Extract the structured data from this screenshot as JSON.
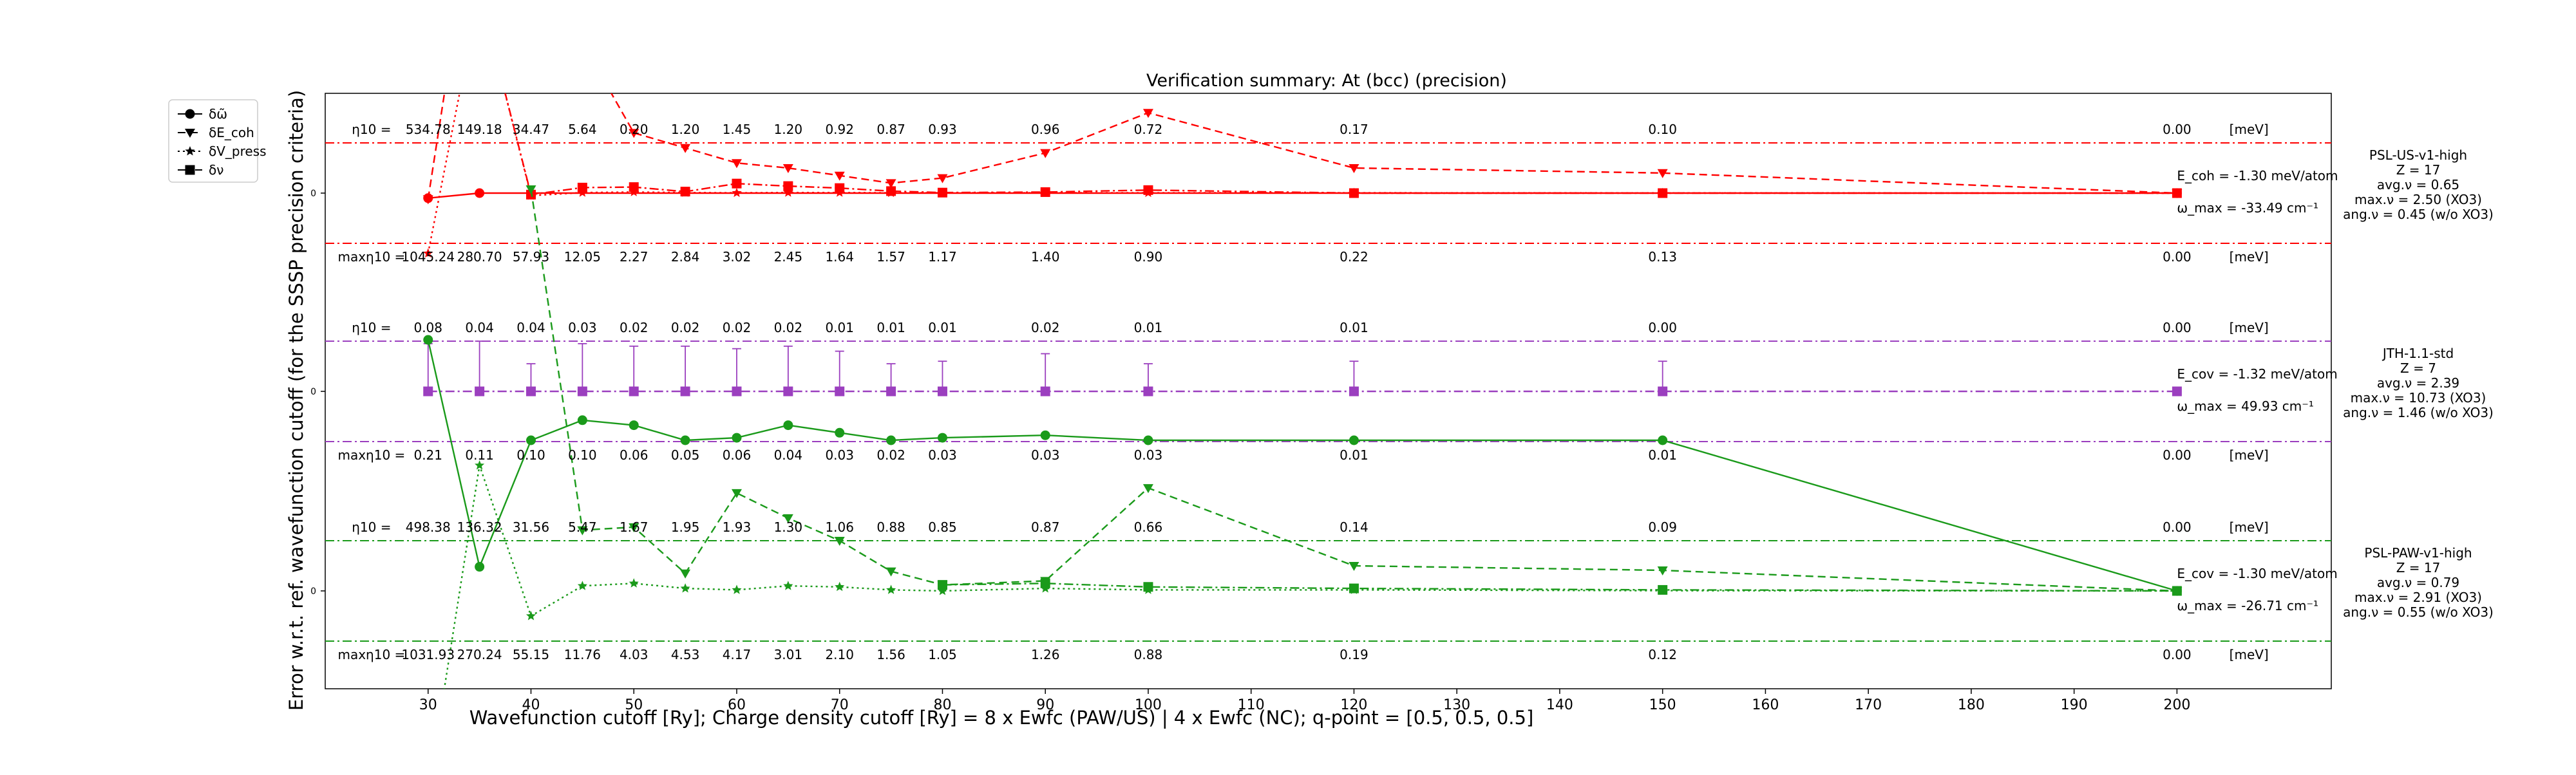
{
  "chart_data": {
    "type": "line",
    "title": "Verification summary: At (bcc) (precision)",
    "xlabel": "Wavefunction cutoff [Ry]; Charge density cutoff [Ry] = 8 x Ewfc (PAW/US) | 4 x Ewfc (NC); q-point = [0.5, 0.5, 0.5]",
    "ylabel": "Error w.r.t. ref. wavefunction cutoff (for the SSSP precision criteria)",
    "xlim": [
      20,
      215
    ],
    "x_ticks": [
      30,
      40,
      50,
      60,
      70,
      80,
      90,
      100,
      110,
      120,
      130,
      140,
      150,
      160,
      170,
      180,
      190,
      200
    ],
    "y_range_note": "three stacked panels, offsets 0, -1, -2 (each y tick labeled 0)",
    "y_tick_label": "0",
    "legend": {
      "position": "upper-left (outside axes)",
      "entries": [
        {
          "label": "δω̃",
          "marker": "circle",
          "linestyle": "solid"
        },
        {
          "label": "δE_coh",
          "marker": "triangle-down",
          "linestyle": "dashed"
        },
        {
          "label": "δV_press",
          "marker": "star",
          "linestyle": "dotted"
        },
        {
          "label": "δν",
          "marker": "square",
          "linestyle": "dash-dot"
        }
      ]
    },
    "x_cutoffs": [
      30,
      35,
      40,
      45,
      50,
      55,
      60,
      65,
      70,
      75,
      80,
      90,
      100,
      120,
      150,
      200
    ],
    "panels": [
      {
        "name": "PSL-US-v1-high",
        "color": "#ff0000",
        "offset": 0,
        "info": [
          "PSL-US-v1-high",
          "Z = 17",
          "avg.ν = 0.65",
          "max.ν = 2.50 (XO3)",
          "ang.ν = 0.45 (w/o XO3)"
        ],
        "ecoh_label": "E_coh = -1.30 meV/atom",
        "omega_label": "ω_max = -33.49 cm⁻¹",
        "eta_prefix": "η10 =",
        "eta_values": [
          "534.78",
          "149.18",
          "34.47",
          "5.64",
          "0.20",
          "1.20",
          "1.45",
          "1.20",
          "0.92",
          "0.87",
          "0.93",
          "0.96",
          "0.72",
          "0.17",
          "0.10",
          "0.00"
        ],
        "eta_x": [
          30,
          35,
          40,
          45,
          50,
          55,
          60,
          65,
          70,
          75,
          80,
          90,
          100,
          120,
          150,
          200
        ],
        "maxeta_prefix": "maxη10 =",
        "maxeta_values": [
          "1045.24",
          "280.70",
          "57.93",
          "12.05",
          "2.27",
          "2.84",
          "3.02",
          "2.45",
          "1.64",
          "1.57",
          "1.17",
          "1.40",
          "0.90",
          "0.22",
          "0.13",
          "0.00"
        ],
        "meV": "[meV]",
        "series": {
          "omega": {
            "x": [
              30,
              35,
              200
            ],
            "y": [
              -0.1,
              0.0,
              0.0
            ],
            "err_x": [],
            "err": []
          },
          "ecoh": {
            "x": [
              30,
              35,
              40,
              45,
              50,
              55,
              60,
              65,
              70,
              75,
              80,
              90,
              100,
              120,
              150,
              200
            ],
            "y": [
              -0.12,
              6.5,
              4.0,
              3.0,
              1.2,
              0.9,
              0.6,
              0.5,
              0.35,
              0.2,
              0.3,
              0.8,
              1.6,
              0.5,
              0.4,
              0.0
            ]
          },
          "vpress": {
            "x": [
              30,
              35,
              40,
              45,
              50,
              55,
              60,
              65,
              70,
              75,
              80,
              90,
              100,
              120,
              150,
              200
            ],
            "y": [
              -1.2,
              4.0,
              -0.05,
              0.01,
              0.02,
              0.01,
              0.005,
              0.01,
              0.01,
              0.005,
              0.005,
              0.005,
              0.005,
              0.005,
              0.003,
              0.0
            ]
          },
          "nu": {
            "x": [
              30,
              35,
              40,
              45,
              50,
              55,
              60,
              65,
              70,
              75,
              80,
              90,
              100,
              120,
              150,
              200
            ],
            "y": [
              5.0,
              4.0,
              -0.03,
              0.11,
              0.12,
              0.03,
              0.19,
              0.14,
              0.1,
              0.04,
              0.01,
              0.02,
              0.06,
              0.0,
              0.0,
              0.0
            ]
          }
        },
        "curves_note": "values are in units of the per-panel threshold (band = ±1)"
      },
      {
        "name": "JTH-1.1-std",
        "color": "#9b3fbf",
        "offset": -1,
        "info": [
          "JTH-1.1-std",
          "Z = 7",
          "avg.ν = 2.39",
          "max.ν = 10.73 (XO3)",
          "ang.ν = 1.46 (w/o XO3)"
        ],
        "ecoh_label": "E_cov = -1.32 meV/atom",
        "omega_label": "ω_max = 49.93 cm⁻¹",
        "eta_prefix": "η10 =",
        "eta_values": [
          "0.08",
          "0.04",
          "0.04",
          "0.03",
          "0.02",
          "0.02",
          "0.02",
          "0.02",
          "0.01",
          "0.01",
          "0.01",
          "0.02",
          "0.01",
          "0.01",
          "0.00",
          "0.00"
        ],
        "eta_x": [
          30,
          35,
          40,
          45,
          50,
          55,
          60,
          65,
          70,
          75,
          80,
          90,
          100,
          120,
          150,
          200
        ],
        "maxeta_prefix": "maxη10 =",
        "maxeta_values": [
          "0.21",
          "0.11",
          "0.10",
          "0.10",
          "0.06",
          "0.05",
          "0.06",
          "0.04",
          "0.03",
          "0.02",
          "0.03",
          "0.03",
          "0.03",
          "0.01",
          "0.01",
          "0.00"
        ],
        "meV": "[meV]",
        "series": {
          "nu": {
            "x": [
              30,
              35,
              40,
              45,
              50,
              55,
              60,
              65,
              70,
              75,
              80,
              90,
              100,
              120,
              150,
              200
            ],
            "y": [
              0,
              0,
              0,
              0,
              0,
              0,
              0,
              0,
              0,
              0,
              0,
              0,
              0,
              0,
              0,
              0
            ]
          },
          "omega_err": {
            "x": [
              30,
              35,
              40,
              45,
              50,
              55,
              60,
              65,
              70,
              75,
              80,
              90,
              100,
              120,
              150,
              200
            ],
            "hi": [
              0.95,
              1.0,
              0.55,
              0.95,
              0.9,
              0.9,
              0.85,
              0.9,
              0.8,
              0.55,
              0.6,
              0.75,
              0.55,
              0.6,
              0.6,
              0.0
            ]
          }
        }
      },
      {
        "name": "PSL-PAW-v1-high",
        "color": "#1a9a1a",
        "offset": -2,
        "info": [
          "PSL-PAW-v1-high",
          "Z = 17",
          "avg.ν = 0.79",
          "max.ν = 2.91 (XO3)",
          "ang.ν = 0.55 (w/o XO3)"
        ],
        "ecoh_label": "E_cov = -1.30 meV/atom",
        "omega_label": "ω_max = -26.71 cm⁻¹",
        "eta_prefix": "η10 =",
        "eta_values": [
          "498.38",
          "136.32",
          "31.56",
          "5.47",
          "1.67",
          "1.95",
          "1.93",
          "1.30",
          "1.06",
          "0.88",
          "0.85",
          "0.87",
          "0.66",
          "0.14",
          "0.09",
          "0.00"
        ],
        "eta_x": [
          30,
          35,
          40,
          45,
          50,
          55,
          60,
          65,
          70,
          75,
          80,
          90,
          100,
          120,
          150,
          200
        ],
        "maxeta_prefix": "maxη10 =",
        "maxeta_values": [
          "1031.93",
          "270.24",
          "55.15",
          "11.76",
          "4.03",
          "4.53",
          "4.17",
          "3.01",
          "2.10",
          "1.56",
          "1.05",
          "1.26",
          "0.88",
          "0.19",
          "0.12",
          "0.00"
        ],
        "meV": "[meV]",
        "series": {
          "omega": {
            "x": [
              30,
              35,
              40,
              45,
              50,
              55,
              60,
              65,
              70,
              75,
              80,
              90,
              100,
              120,
              150,
              200
            ],
            "y": [
              5.0,
              0.48,
              3.0,
              3.4,
              3.3,
              3.0,
              3.05,
              3.3,
              3.15,
              3.0,
              3.05,
              3.1,
              3.0,
              3.0,
              3.0,
              0.0
            ]
          },
          "ecoh": {
            "x": [
              40,
              45,
              50,
              55,
              60,
              65,
              70,
              75,
              80,
              90,
              100,
              120,
              150,
              200
            ],
            "y": [
              8.0,
              1.21,
              1.27,
              0.35,
              1.95,
              1.45,
              1.0,
              0.39,
              0.12,
              0.2,
              2.05,
              0.5,
              0.41,
              0.0
            ]
          },
          "vpress": {
            "x": [
              30,
              35,
              40,
              45,
              50,
              55,
              60,
              65,
              70,
              75,
              80,
              90,
              100,
              120,
              150,
              200
            ],
            "y": [
              -4.0,
              2.5,
              -0.5,
              0.1,
              0.15,
              0.05,
              0.02,
              0.1,
              0.08,
              0.02,
              0.0,
              0.05,
              0.02,
              0.02,
              0.005,
              0.0
            ]
          },
          "nu": {
            "x": [
              80,
              90,
              100,
              120,
              150,
              200
            ],
            "y": [
              0.12,
              0.15,
              0.08,
              0.05,
              0.02,
              0.0
            ]
          }
        }
      }
    ]
  }
}
